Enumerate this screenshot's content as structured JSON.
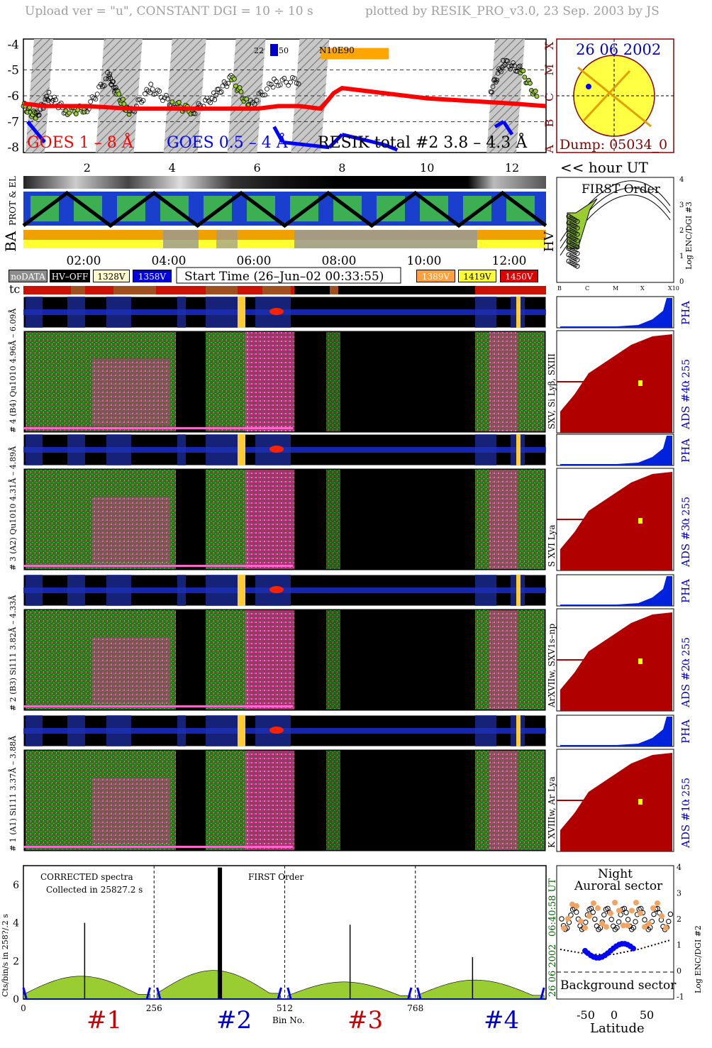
{
  "header": {
    "upload": "Upload ver = \"u\", CONSTANT  DGI =  10 ÷  10 s",
    "plotted": "plotted by RESIK_PRO_v3.0, 23 Sep. 2003 by JS"
  },
  "top_panel": {
    "y_ticks": [
      "-4",
      "-5",
      "-6",
      "-7",
      "-8"
    ],
    "x_ticks": [
      "2",
      "4",
      "6",
      "8",
      "10",
      "12"
    ],
    "class_letters": [
      "X",
      "M",
      "C",
      "B",
      "A"
    ],
    "legend_goes18": "GOES 1 – 8 Å",
    "legend_goes054": "GOES 0.5 – 4 Å",
    "legend_resik": "RESIK total #2  3.8 – 4.3 Å",
    "event_small": "22",
    "event_small2": "50",
    "event_label": "N10E90",
    "hour_ut": "<< hour UT",
    "colors": {
      "goes18": "#ff0000",
      "goes054": "#0000ff",
      "resik": "#000000",
      "resik_fill": "#9acd32",
      "event_bar": "#ffa500"
    }
  },
  "sun_panel": {
    "date": "26 06 2002",
    "dump": "Dump: 05034_0"
  },
  "status_panel": {
    "prot_label": "PROT & EL",
    "ba_label": "BA",
    "time_ticks": [
      "02:00",
      "04:00",
      "06:00",
      "08:00",
      "10:00",
      "12:00"
    ],
    "start_time": "Start Time (26–Jun–02 00:33:55)",
    "tc_label": "tc",
    "hv_label": "HV"
  },
  "legend_chips": [
    {
      "label": "noDATA",
      "bg": "#8c8c8c",
      "fg": "#ffffff"
    },
    {
      "label": "HV–OFF",
      "bg": "#000000",
      "fg": "#ffffff"
    },
    {
      "label": "1328V",
      "bg": "#fffacd",
      "fg": "#000000"
    },
    {
      "label": "1358V",
      "bg": "#0000dd",
      "fg": "#ffffff"
    },
    {
      "label": "1389V",
      "bg": "#ffa040",
      "fg": "#ffffff"
    },
    {
      "label": "1419V",
      "bg": "#ffff33",
      "fg": "#000000"
    },
    {
      "label": "1450V",
      "bg": "#dd0000",
      "fg": "#ffffff"
    }
  ],
  "first_order_panel": {
    "title": "FIRST Order",
    "ylabel": "Log ENC/DGI #3",
    "y_ticks": [
      "4",
      "3",
      "2",
      "1",
      "0"
    ],
    "x_ticks": [
      "B",
      "C",
      "M",
      "X",
      "X10"
    ]
  },
  "channels": [
    {
      "left_label": "# 4 (B4) Qu1010 4.96Å – 6.09Å",
      "right_label": "SXV, Si Lyβ, SXIII",
      "ads": "ADS #4 :",
      "range": "0  255",
      "pha": "PHA"
    },
    {
      "left_label": "# 3 (A2) Qu1010 4.31Å – 4.89Å",
      "right_label": "S XVI Lya",
      "ads": "ADS #3 :",
      "range": "0  255",
      "pha": "PHA"
    },
    {
      "left_label": "# 2 (B3) Si111 3.82Å – 4.33Å",
      "right_label": "ArXVIIw, SXV1s–np",
      "ads": "ADS #2 :",
      "range": "0  255",
      "pha": "PHA"
    },
    {
      "left_label": "# 1 (A1) Si111 3.37Å – 3.88Å",
      "right_label": "K XVIIIw, Ar Lya",
      "ads": "ADS #1 :",
      "range": "0  255",
      "pha": "PHA"
    }
  ],
  "spectrum_panel": {
    "text1": "CORRECTED spectra",
    "text2": "Collected in 25827.2 s",
    "text3": "FIRST Order",
    "ylabel": "Cts/bin/s in 258?/.2 s",
    "y_ticks": [
      "0",
      "2",
      "4",
      "6"
    ],
    "x_ticks": [
      "0",
      "256",
      "512",
      "768"
    ],
    "xlabel": "Bin No.",
    "side_time": "06:40:58 UT",
    "side_date": "26 06 2002",
    "detectors": [
      "#1",
      "#2",
      "#3",
      "#4"
    ]
  },
  "lat_panel": {
    "title1": "Night",
    "title2": "Auroral sector",
    "title3": "Background sector",
    "ylabel": "Log ENC/DGI #2",
    "x_ticks": [
      "-50",
      "0",
      "50"
    ],
    "y_ticks": [
      "4",
      "3",
      "2",
      "1",
      "0",
      "-1"
    ],
    "xlabel": "Latitude"
  },
  "chart_data": [
    {
      "type": "line",
      "title": "",
      "xlabel": "",
      "ylabel": "",
      "xlim": [
        0.5,
        12.8
      ],
      "ylim": [
        -8.2,
        -3.8
      ],
      "series": [
        {
          "name": "GOES 1 – 8 Å",
          "x": [
            0.5,
            1,
            2,
            3,
            4,
            5,
            6,
            6.5,
            7,
            7.5,
            7.8,
            8,
            9,
            10,
            11,
            12,
            12.8
          ],
          "y": [
            -6.3,
            -6.4,
            -6.4,
            -6.5,
            -6.5,
            -6.5,
            -6.5,
            -6.4,
            -6.4,
            -6.5,
            -5.9,
            -5.7,
            -5.9,
            -6.1,
            -6.2,
            -6.3,
            -6.4
          ]
        },
        {
          "name": "GOES 0.5 – 4 Å",
          "x": [
            0.6,
            0.8,
            1.0,
            6.4,
            6.6,
            7.7,
            8.0,
            8.5,
            9.0,
            9.3,
            11.6,
            11.8,
            12.0
          ],
          "y": [
            -7.0,
            -7.4,
            -7.8,
            -7.2,
            -7.8,
            -8.0,
            -7.5,
            -7.7,
            -7.9,
            -8.1,
            -7.2,
            -7.0,
            -7.5
          ]
        },
        {
          "name": "RESIK total #2  3.8 – 4.3 Å",
          "x": [
            0.5,
            0.8,
            1.1,
            1.5,
            2.0,
            2.5,
            2.7,
            3.0,
            3.5,
            4.0,
            4.5,
            5.0,
            5.4,
            5.8,
            6.4,
            7.0,
            11.5,
            11.8,
            12.2,
            12.6
          ],
          "y": [
            -6.4,
            -6.8,
            -6.0,
            -6.6,
            -6.5,
            -5.2,
            -5.9,
            -6.7,
            -5.7,
            -6.3,
            -6.6,
            -6.0,
            -5.3,
            -6.4,
            -5.5,
            -5.4,
            -5.8,
            -4.7,
            -5.0,
            -6.1
          ]
        }
      ],
      "shaded_intervals": [
        [
          0.55,
          1.2
        ],
        [
          2.2,
          3.3
        ],
        [
          3.8,
          4.8
        ],
        [
          5.3,
          6.2
        ],
        [
          6.8,
          7.7
        ],
        [
          11.4,
          12.3
        ]
      ],
      "event": {
        "label": "N10E90",
        "x_start": 7.5,
        "x_end": 9.1,
        "y": -4.2
      }
    },
    {
      "type": "bar",
      "title": "",
      "xlabel": "Bin No.",
      "ylabel": "Cts/bin/s in 258?/.2 s",
      "xlim": [
        0,
        1024
      ],
      "ylim": [
        0,
        7
      ],
      "segments": [
        {
          "name": "#1",
          "start": 0,
          "end": 248,
          "base_level": 1.2,
          "peak_bin": 120,
          "peak_value": 4.0
        },
        {
          "name": "#2",
          "start": 262,
          "end": 505,
          "base_level": 1.5,
          "peak_bin": 385,
          "peak_value": 6.9
        },
        {
          "name": "#3",
          "start": 518,
          "end": 760,
          "base_level": 0.9,
          "peak_bin": 640,
          "peak_value": 3.9
        },
        {
          "name": "#4",
          "start": 772,
          "end": 1020,
          "base_level": 1.0,
          "peak_bin": 880,
          "peak_value": 2.2
        }
      ]
    }
  ]
}
